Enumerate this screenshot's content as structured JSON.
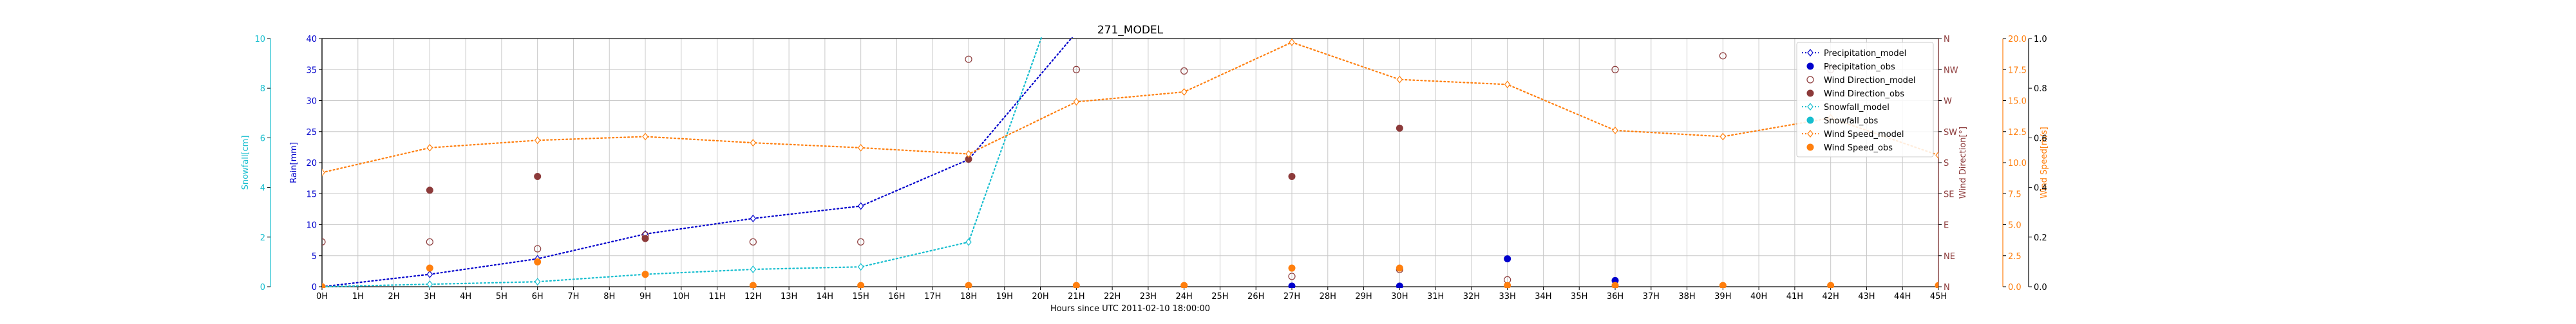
{
  "chart_data": {
    "type": "line",
    "title": "271_MODEL",
    "xlabel": "Hours since UTC 2011-02-10 18:00:00",
    "x_tick_labels": [
      "0H",
      "1H",
      "2H",
      "3H",
      "4H",
      "5H",
      "6H",
      "7H",
      "8H",
      "9H",
      "10H",
      "11H",
      "12H",
      "13H",
      "14H",
      "15H",
      "16H",
      "17H",
      "18H",
      "19H",
      "20H",
      "21H",
      "22H",
      "23H",
      "24H",
      "25H",
      "26H",
      "27H",
      "28H",
      "29H",
      "30H",
      "31H",
      "32H",
      "33H",
      "34H",
      "35H",
      "36H",
      "37H",
      "38H",
      "39H",
      "40H",
      "41H",
      "42H",
      "43H",
      "44H",
      "45H"
    ],
    "xlim": [
      0,
      45
    ],
    "grid": true,
    "legend_position": "top-right",
    "axes": {
      "rain": {
        "label": "Rain[mm]",
        "range": [
          0,
          40
        ],
        "ticks": [
          "0",
          "5",
          "10",
          "15",
          "20",
          "25",
          "30",
          "35",
          "40"
        ],
        "color": "#0000cc",
        "side": "left"
      },
      "snow": {
        "label": "Snowfall[cm]",
        "range": [
          0,
          10
        ],
        "ticks": [
          "0",
          "2",
          "4",
          "6",
          "8",
          "10"
        ],
        "color": "#17becf",
        "side": "left-outer"
      },
      "wind_dir": {
        "label": "Wind Direction[°]",
        "range": [
          0,
          360
        ],
        "ticks": [
          "N",
          "NE",
          "E",
          "SE",
          "S",
          "SW",
          "W",
          "NW",
          "N"
        ],
        "color": "#8c3a3a",
        "side": "right"
      },
      "wind_speed": {
        "label": "Wind Speed[m/s]",
        "range": [
          0,
          20
        ],
        "ticks": [
          "0.0",
          "2.5",
          "5.0",
          "7.5",
          "10.0",
          "12.5",
          "15.0",
          "17.5",
          "20.0"
        ],
        "color": "#ff7f0e",
        "side": "right-middle"
      },
      "extra": {
        "label": "",
        "range": [
          0,
          1
        ],
        "ticks": [
          "0.0",
          "0.2",
          "0.4",
          "0.6",
          "0.8",
          "1.0"
        ],
        "color": "#000000",
        "side": "right-outer"
      }
    },
    "series": [
      {
        "name": "Precipitation_model",
        "axis": "rain",
        "style": "dotted-line-open-diamond",
        "color": "#0000cc",
        "x": [
          0,
          3,
          6,
          9,
          12,
          15,
          18,
          21
        ],
        "y": [
          0,
          2,
          4.5,
          8.5,
          11,
          13,
          20.5,
          41
        ]
      },
      {
        "name": "Precipitation_obs",
        "axis": "rain",
        "style": "filled-circle",
        "color": "#0000cc",
        "x": [
          27,
          30,
          33,
          36
        ],
        "y": [
          0.1,
          0.1,
          4.5,
          1
        ]
      },
      {
        "name": "Wind Direction_model",
        "axis": "wind_dir",
        "style": "open-circle",
        "color": "#8c3a3a",
        "x": [
          0,
          3,
          6,
          9,
          12,
          15,
          18,
          21,
          24,
          27,
          30,
          33,
          36,
          39,
          42
        ],
        "y": [
          65,
          65,
          55,
          75,
          65,
          65,
          330,
          315,
          313,
          15,
          25,
          10,
          315,
          335,
          315
        ]
      },
      {
        "name": "Wind Direction_obs",
        "axis": "wind_dir",
        "style": "filled-circle",
        "color": "#8c3a3a",
        "x": [
          3,
          6,
          9,
          18,
          27,
          30
        ],
        "y": [
          140,
          160,
          70,
          185,
          160,
          230
        ]
      },
      {
        "name": "Snowfall_model",
        "axis": "snow",
        "style": "dotted-line-open-diamond",
        "color": "#17becf",
        "x": [
          0,
          3,
          6,
          9,
          12,
          15,
          18,
          21
        ],
        "y": [
          0,
          0.1,
          0.2,
          0.5,
          0.7,
          0.8,
          1.8,
          14
        ]
      },
      {
        "name": "Snowfall_obs",
        "axis": "snow",
        "style": "filled-circle",
        "color": "#17becf",
        "x": [],
        "y": []
      },
      {
        "name": "Wind Speed_model",
        "axis": "wind_speed",
        "style": "dotted-line-open-diamond",
        "color": "#ff7f0e",
        "x": [
          0,
          3,
          6,
          9,
          12,
          15,
          18,
          21,
          24,
          27,
          30,
          33,
          36,
          39,
          42,
          45
        ],
        "y": [
          9.2,
          11.2,
          11.8,
          12.1,
          11.6,
          11.2,
          10.7,
          14.9,
          15.7,
          19.7,
          16.7,
          16.3,
          12.6,
          12.1,
          13.6,
          10.6
        ]
      },
      {
        "name": "Wind Speed_obs",
        "axis": "wind_speed",
        "style": "filled-circle",
        "color": "#ff7f0e",
        "x": [
          0,
          3,
          6,
          9,
          12,
          15,
          18,
          21,
          24,
          27,
          30,
          33,
          36,
          39,
          42,
          45
        ],
        "y": [
          0,
          1.5,
          2,
          1,
          0.1,
          0.1,
          0.1,
          0.1,
          0.1,
          1.5,
          1.5,
          0.1,
          0.1,
          0.1,
          0.1,
          0.1
        ]
      }
    ]
  }
}
